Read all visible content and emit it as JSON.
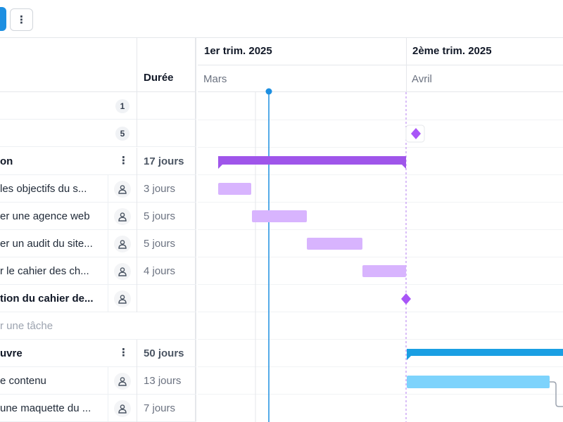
{
  "toolbar": {
    "more_icon": "⋮"
  },
  "columns": {
    "duration_header": "Durée"
  },
  "timeline": {
    "quarters": [
      "1er trim. 2025",
      "2ème trim. 2025"
    ],
    "months": [
      "Mars",
      "Avril"
    ]
  },
  "rows": [
    {
      "name": "",
      "badge": "1"
    },
    {
      "name": "",
      "badge": "5"
    },
    {
      "name": "on",
      "duration": "17 jours",
      "kebab": "⋮"
    },
    {
      "name": "les objectifs du s...",
      "duration": "3 jours"
    },
    {
      "name": "er une agence web",
      "duration": "5 jours"
    },
    {
      "name": "er un audit du site...",
      "duration": "5 jours"
    },
    {
      "name": "r le cahier des ch...",
      "duration": "4 jours"
    },
    {
      "name": "tion du cahier de...",
      "duration": ""
    },
    {
      "name": "r une tâche"
    },
    {
      "name": "uvre",
      "duration": "50 jours",
      "kebab": "⋮"
    },
    {
      "name": "e contenu",
      "duration": "13 jours"
    },
    {
      "name": "une maquette du ...",
      "duration": "7 jours"
    }
  ],
  "colors": {
    "accent_blue": "#1d8fe1",
    "today_line": "#1d8fe1",
    "group_purple": "#9f55ea",
    "task_purple": "#d8b4fe",
    "milestone_purple": "#a855f7",
    "group_blue": "#1a9fe3",
    "task_blue": "#7dd3fc"
  },
  "icons": {
    "assignee": "user-icon",
    "more": "vertical-dots-icon",
    "milestone": "diamond-icon"
  }
}
